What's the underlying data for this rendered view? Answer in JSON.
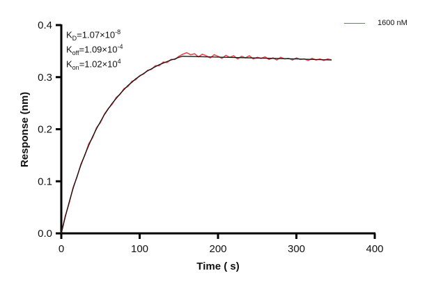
{
  "chart_data": {
    "type": "line",
    "xlabel": "Time ( s)",
    "ylabel": "Response (nm)",
    "xlim": [
      0,
      400
    ],
    "ylim": [
      0,
      0.4
    ],
    "xticks": [
      "0",
      "100",
      "200",
      "300",
      "400"
    ],
    "yticks": [
      "0.0",
      "0.1",
      "0.2",
      "0.3",
      "0.4"
    ],
    "grid": false,
    "legend_position": "top-right",
    "annotations": {
      "kd": {
        "k": "K",
        "sub": "D",
        "val": "=1.07×10",
        "exp": "-8"
      },
      "koff": {
        "k": "K",
        "sub": "off",
        "val": "=1.09×10",
        "exp": "-4"
      },
      "kon": {
        "k": "K",
        "sub": "on",
        "val": "=1.02×10",
        "exp": "4"
      }
    },
    "series": [
      {
        "name": "1600 nM",
        "color": "#e8454a",
        "x": [
          0,
          5,
          10,
          15,
          20,
          25,
          30,
          35,
          40,
          45,
          50,
          55,
          60,
          65,
          70,
          75,
          80,
          85,
          90,
          95,
          100,
          105,
          110,
          115,
          120,
          125,
          130,
          135,
          140,
          145,
          150,
          155,
          160,
          165,
          170,
          175,
          180,
          185,
          190,
          195,
          200,
          205,
          210,
          215,
          220,
          225,
          230,
          235,
          240,
          245,
          250,
          255,
          260,
          265,
          270,
          275,
          280,
          285,
          290,
          295,
          300,
          305,
          310,
          315,
          320,
          325,
          330,
          335,
          340,
          345
        ],
        "y": [
          0,
          0.033,
          0.058,
          0.088,
          0.108,
          0.133,
          0.15,
          0.172,
          0.184,
          0.203,
          0.213,
          0.229,
          0.24,
          0.248,
          0.261,
          0.267,
          0.278,
          0.282,
          0.292,
          0.295,
          0.303,
          0.306,
          0.313,
          0.315,
          0.322,
          0.322,
          0.329,
          0.328,
          0.334,
          0.334,
          0.34,
          0.344,
          0.347,
          0.343,
          0.345,
          0.339,
          0.344,
          0.341,
          0.337,
          0.343,
          0.34,
          0.336,
          0.342,
          0.338,
          0.341,
          0.335,
          0.34,
          0.337,
          0.341,
          0.335,
          0.338,
          0.336,
          0.339,
          0.334,
          0.337,
          0.333,
          0.338,
          0.335,
          0.336,
          0.333,
          0.337,
          0.334,
          0.335,
          0.332,
          0.336,
          0.333,
          0.335,
          0.332,
          0.335,
          0.333
        ]
      },
      {
        "color": "#111111",
        "x": [
          0,
          5,
          10,
          15,
          20,
          25,
          30,
          35,
          40,
          45,
          50,
          55,
          60,
          65,
          70,
          75,
          80,
          85,
          90,
          95,
          100,
          105,
          110,
          115,
          120,
          125,
          130,
          135,
          140,
          145,
          150,
          155,
          200,
          250,
          300,
          345
        ],
        "y": [
          0,
          0.031,
          0.06,
          0.086,
          0.109,
          0.131,
          0.151,
          0.169,
          0.186,
          0.201,
          0.215,
          0.228,
          0.239,
          0.25,
          0.259,
          0.268,
          0.276,
          0.284,
          0.29,
          0.297,
          0.302,
          0.307,
          0.312,
          0.316,
          0.32,
          0.324,
          0.327,
          0.33,
          0.333,
          0.335,
          0.338,
          0.34,
          0.3385,
          0.3367,
          0.335,
          0.333
        ]
      }
    ]
  }
}
